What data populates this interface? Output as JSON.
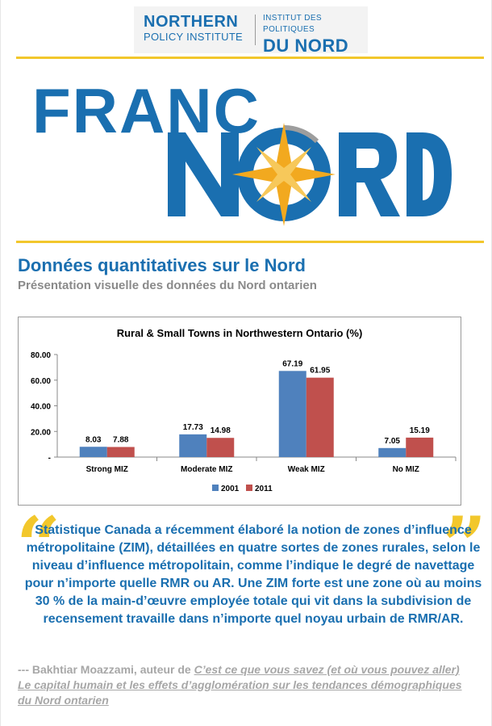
{
  "header": {
    "npi_line1": "NORTHERN",
    "npi_line2": "POLICY INSTITUTE",
    "fr_line1": "INSTITUT DES POLITIQUES",
    "fr_line2": "DU NORD"
  },
  "logo": {
    "word1": "FRANC",
    "word2": "NORD"
  },
  "page_title": "Données quantitatives sur le Nord",
  "page_subtitle": "Présentation visuelle des données du Nord ontarien",
  "colors": {
    "brand_blue": "#1a6fb0",
    "accent_yellow": "#f2c72c",
    "series_2001": "#4f81bd",
    "series_2011": "#c0504d"
  },
  "chart_data": {
    "type": "bar",
    "title": "Rural & Small Towns in Northwestern Ontario (%)",
    "categories": [
      "Strong MIZ",
      "Moderate MIZ",
      "Weak MIZ",
      "No MIZ"
    ],
    "series": [
      {
        "name": "2001",
        "values": [
          8.03,
          17.73,
          67.19,
          7.05
        ],
        "labels": [
          "8.03",
          "17.73",
          "67.19",
          "7.05"
        ]
      },
      {
        "name": "2011",
        "values": [
          7.88,
          14.98,
          61.95,
          15.19
        ],
        "labels": [
          "7.88",
          "14.98",
          "61.95",
          "15.19"
        ]
      }
    ],
    "y_ticks": [
      "-",
      "20.00",
      "40.00",
      "60.00",
      "80.00"
    ],
    "ylim": [
      0,
      80
    ],
    "grid": false,
    "legend_position": "bottom"
  },
  "quote": {
    "open_mark": "“",
    "close_mark": "”",
    "text": "Statistique Canada a récemment élaboré la notion de zones d’influence métropolitaine (ZIM), détaillées en quatre sortes de zones rurales, selon le niveau d’influence métropolitain, comme l’indique le degré de navettage pour n’importe quelle RMR ou AR. Une ZIM forte est une zone où au moins 30 % de la main-d’œuvre employée totale qui vit dans la subdivision de recensement travaille dans n’importe quel noyau urbain de RMR/AR."
  },
  "attribution": {
    "prefix": "--- Bakhtiar Moazzami, auteur de ",
    "link_text": "C’est ce que vous savez (et où vous pouvez aller) Le capital humain et les effets d’agglomération sur les tendances démographiques du Nord ontarien "
  }
}
